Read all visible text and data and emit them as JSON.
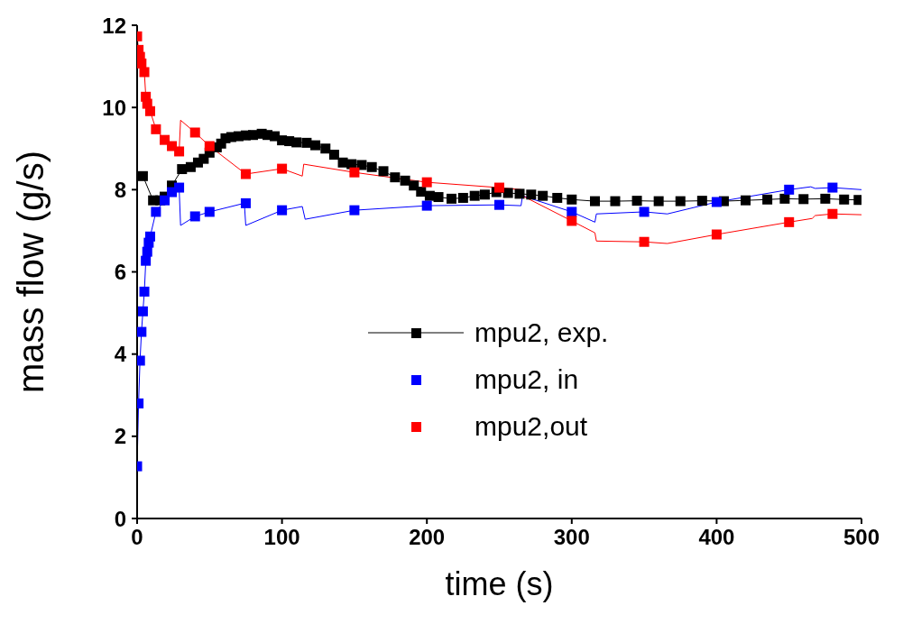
{
  "chart_data": {
    "type": "line",
    "xlabel": "time (s)",
    "ylabel": "mass flow (g/s)",
    "xlim": [
      0,
      500
    ],
    "xticks": [
      0,
      100,
      200,
      300,
      400,
      500
    ],
    "ylim": [
      0,
      12
    ],
    "yticks": [
      0,
      2,
      4,
      6,
      8,
      10,
      12
    ],
    "grid": false,
    "legend": "center",
    "series": [
      {
        "name": "mpu2, exp.",
        "marker": "square",
        "color": "#000000",
        "x": [
          4,
          11,
          16,
          19,
          24,
          31,
          37,
          42,
          46,
          50,
          55,
          58,
          61,
          65,
          70,
          75,
          80,
          86,
          90,
          95,
          100,
          105,
          110,
          117,
          123,
          130,
          136,
          142,
          148,
          155,
          162,
          170,
          178,
          185,
          191,
          196,
          202,
          208,
          217,
          225,
          233,
          240,
          248,
          256,
          264,
          272,
          280,
          290,
          300,
          316,
          330,
          345,
          360,
          375,
          390,
          405,
          420,
          435,
          447,
          460,
          475,
          488,
          498
        ],
        "values": [
          8.33,
          7.74,
          7.74,
          7.83,
          8.1,
          8.5,
          8.55,
          8.66,
          8.75,
          8.9,
          9.03,
          9.12,
          9.25,
          9.28,
          9.3,
          9.32,
          9.33,
          9.36,
          9.33,
          9.3,
          9.2,
          9.18,
          9.15,
          9.14,
          9.08,
          9.0,
          8.85,
          8.66,
          8.62,
          8.6,
          8.55,
          8.45,
          8.3,
          8.22,
          8.1,
          7.95,
          7.85,
          7.82,
          7.78,
          7.8,
          7.85,
          7.88,
          7.94,
          7.92,
          7.9,
          7.88,
          7.85,
          7.8,
          7.76,
          7.72,
          7.72,
          7.73,
          7.72,
          7.72,
          7.73,
          7.72,
          7.74,
          7.76,
          7.78,
          7.77,
          7.78,
          7.76,
          7.75
        ]
      },
      {
        "name": "mpu2, in",
        "type": "scatter",
        "marker": "square",
        "color": "#0000ff",
        "x": [
          0,
          1,
          2,
          3,
          4,
          5,
          6,
          7,
          8,
          9,
          13,
          19,
          24,
          29,
          40,
          50,
          75,
          100,
          150,
          200,
          250,
          300,
          350,
          400,
          450,
          480
        ],
        "values": [
          1.27,
          2.8,
          3.84,
          4.54,
          5.04,
          5.52,
          6.27,
          6.49,
          6.71,
          6.86,
          7.46,
          7.74,
          7.94,
          8.05,
          7.35,
          7.46,
          7.67,
          7.5,
          7.5,
          7.61,
          7.63,
          7.46,
          7.46,
          7.7,
          8.0,
          8.05
        ]
      },
      {
        "type": "line",
        "marker": "none",
        "color": "#0000ff",
        "x": [
          0,
          1,
          2,
          3,
          4,
          5,
          6,
          7,
          8,
          9,
          13,
          19,
          24,
          29,
          30,
          40,
          50,
          74,
          75,
          100,
          114,
          116,
          150,
          200,
          250,
          265,
          266,
          300,
          316,
          317,
          350,
          366,
          400,
          450,
          465,
          468,
          480,
          500
        ],
        "values": [
          1.27,
          2.8,
          3.84,
          4.54,
          5.04,
          5.52,
          6.27,
          6.49,
          6.71,
          6.86,
          7.46,
          7.74,
          7.94,
          8.05,
          7.13,
          7.35,
          7.46,
          7.67,
          7.13,
          7.5,
          7.59,
          7.28,
          7.5,
          7.61,
          7.63,
          7.61,
          7.85,
          7.46,
          7.21,
          7.41,
          7.46,
          7.41,
          7.7,
          8.0,
          8.07,
          8.03,
          8.05,
          8.0
        ]
      },
      {
        "name": "mpu2,out",
        "type": "scatter",
        "marker": "square",
        "color": "#ff0000",
        "x": [
          0,
          1,
          2,
          3,
          5,
          6,
          7,
          9,
          13,
          19,
          24,
          29,
          40,
          50,
          75,
          100,
          150,
          200,
          250,
          300,
          350,
          400,
          450,
          480
        ],
        "values": [
          11.73,
          11.4,
          11.23,
          11.07,
          10.86,
          10.26,
          10.09,
          9.91,
          9.47,
          9.21,
          9.06,
          8.93,
          9.39,
          9.06,
          8.38,
          8.51,
          8.42,
          8.18,
          8.05,
          7.24,
          6.73,
          6.91,
          7.21,
          7.41
        ]
      },
      {
        "type": "line",
        "marker": "none",
        "color": "#ff0000",
        "x": [
          0,
          1,
          2,
          3,
          5,
          6,
          7,
          9,
          13,
          19,
          24,
          29,
          30,
          40,
          50,
          75,
          100,
          114,
          115,
          150,
          200,
          250,
          265,
          266,
          300,
          316,
          317,
          350,
          366,
          400,
          450,
          466,
          468,
          480,
          500
        ],
        "values": [
          11.73,
          11.4,
          11.23,
          11.07,
          10.86,
          10.26,
          10.09,
          9.91,
          9.47,
          9.21,
          9.06,
          8.93,
          9.69,
          9.39,
          9.06,
          8.38,
          8.51,
          8.33,
          8.62,
          8.42,
          8.18,
          8.05,
          8.0,
          7.85,
          7.24,
          6.95,
          6.75,
          6.73,
          6.69,
          6.91,
          7.21,
          7.3,
          7.37,
          7.41,
          7.39
        ]
      }
    ]
  }
}
